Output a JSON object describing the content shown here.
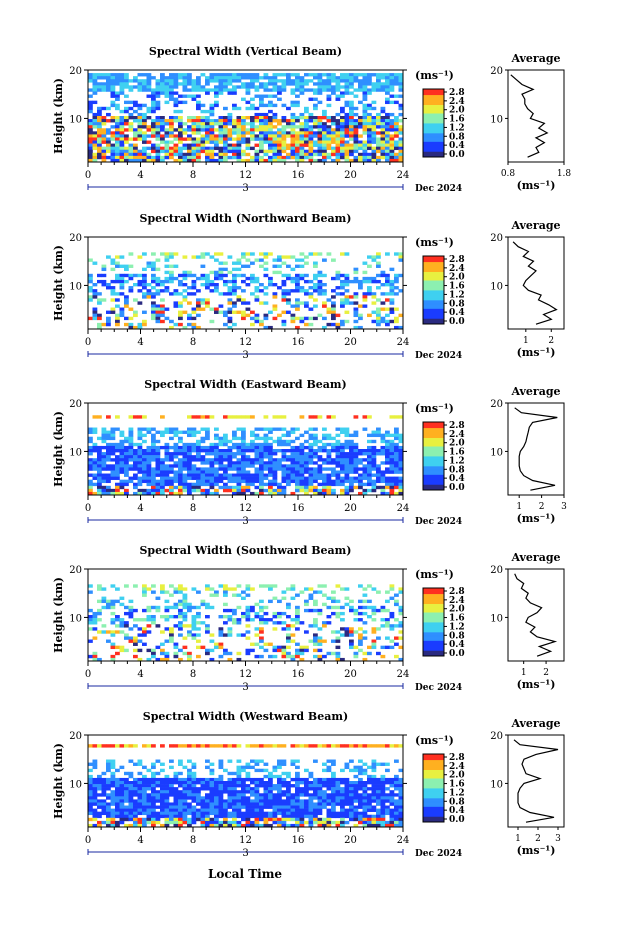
{
  "figure": {
    "xlabel_bottom": "Local Time",
    "date_label": "Dec 2024",
    "day_label": "3",
    "ylabel": "Height (km)",
    "colorbar_unit": "(ms⁻¹)",
    "colorbar_ticks": [
      "2.8",
      "2.4",
      "2.0",
      "1.6",
      "1.2",
      "0.8",
      "0.4",
      "0.0"
    ],
    "avg_title": "Average",
    "avg_xlabel": "(ms⁻¹)",
    "colors": {
      "scale": [
        "#2a2a80",
        "#1a3cff",
        "#2f8fff",
        "#3fd0f0",
        "#8cf0b0",
        "#e8f040",
        "#ffb020",
        "#ff3020"
      ]
    }
  },
  "chart_data": [
    {
      "type": "heatmap",
      "title": "Spectral Width (Vertical Beam)",
      "xlabel": "Local Time",
      "ylabel": "Height (km)",
      "x_ticks": [
        0,
        4,
        8,
        12,
        16,
        20,
        24
      ],
      "y_ticks": [
        10,
        20
      ],
      "xlim": [
        0,
        24
      ],
      "ylim": [
        1,
        20
      ],
      "value_range": [
        0.0,
        3.0
      ],
      "average_profile": {
        "xlim": [
          0.8,
          1.8
        ],
        "x_ticks": [
          "0.8",
          "1.8"
        ],
        "heights": [
          2,
          3,
          4,
          5,
          6,
          7,
          8,
          9,
          10,
          11,
          12,
          13,
          14,
          15,
          16,
          17,
          18,
          19
        ],
        "values": [
          1.15,
          1.35,
          1.3,
          1.45,
          1.3,
          1.5,
          1.35,
          1.45,
          1.2,
          1.25,
          1.15,
          1.1,
          1.1,
          1.05,
          1.25,
          1.05,
          0.95,
          0.85
        ]
      }
    },
    {
      "type": "heatmap",
      "title": "Spectral Width (Northward Beam)",
      "xlabel": "Local Time",
      "ylabel": "Height (km)",
      "x_ticks": [
        0,
        4,
        8,
        12,
        16,
        20,
        24
      ],
      "y_ticks": [
        10,
        20
      ],
      "xlim": [
        0,
        24
      ],
      "ylim": [
        1,
        20
      ],
      "value_range": [
        0.0,
        3.0
      ],
      "average_profile": {
        "xlim": [
          0.3,
          2.5
        ],
        "x_ticks": [
          "1",
          "2"
        ],
        "heights": [
          2,
          3,
          4,
          5,
          6,
          7,
          8,
          9,
          10,
          11,
          12,
          13,
          14,
          15,
          16,
          17,
          18,
          19
        ],
        "values": [
          1.4,
          2.0,
          1.7,
          2.2,
          1.9,
          1.5,
          1.6,
          1.1,
          0.9,
          1.0,
          1.2,
          1.4,
          1.1,
          1.3,
          0.9,
          1.1,
          0.7,
          0.5
        ]
      }
    },
    {
      "type": "heatmap",
      "title": "Spectral Width (Eastward Beam)",
      "xlabel": "Local Time",
      "ylabel": "Height (km)",
      "x_ticks": [
        0,
        4,
        8,
        12,
        16,
        20,
        24
      ],
      "y_ticks": [
        10,
        20
      ],
      "xlim": [
        0,
        24
      ],
      "ylim": [
        1,
        20
      ],
      "value_range": [
        0.0,
        3.0
      ],
      "average_profile": {
        "xlim": [
          0.5,
          3.0
        ],
        "x_ticks": [
          "1",
          "2",
          "3"
        ],
        "heights": [
          2,
          3,
          4,
          5,
          6,
          7,
          8,
          9,
          10,
          11,
          12,
          13,
          14,
          15,
          16,
          17,
          18,
          19
        ],
        "values": [
          1.5,
          2.6,
          1.6,
          1.2,
          1.05,
          1.0,
          1.0,
          1.0,
          1.05,
          1.2,
          1.3,
          1.35,
          1.4,
          1.45,
          1.6,
          2.7,
          1.1,
          0.8
        ]
      }
    },
    {
      "type": "heatmap",
      "title": "Spectral Width (Southward Beam)",
      "xlabel": "Local Time",
      "ylabel": "Height (km)",
      "x_ticks": [
        0,
        4,
        8,
        12,
        16,
        20,
        24
      ],
      "y_ticks": [
        10,
        20
      ],
      "xlim": [
        0,
        24
      ],
      "ylim": [
        1,
        20
      ],
      "value_range": [
        0.0,
        3.0
      ],
      "average_profile": {
        "xlim": [
          0.3,
          2.8
        ],
        "x_ticks": [
          "1",
          "2"
        ],
        "heights": [
          2,
          3,
          4,
          5,
          6,
          7,
          8,
          9,
          10,
          11,
          12,
          13,
          14,
          15,
          16,
          17,
          18,
          19
        ],
        "values": [
          1.6,
          2.2,
          1.7,
          2.4,
          1.6,
          1.3,
          1.5,
          1.1,
          1.2,
          1.6,
          1.8,
          1.3,
          1.1,
          1.2,
          0.9,
          1.0,
          0.7,
          0.6
        ]
      }
    },
    {
      "type": "heatmap",
      "title": "Spectral Width (Westward Beam)",
      "xlabel": "Local Time",
      "ylabel": "Height (km)",
      "x_ticks": [
        0,
        4,
        8,
        12,
        16,
        20,
        24
      ],
      "y_ticks": [
        10,
        20
      ],
      "xlim": [
        0,
        24
      ],
      "ylim": [
        1,
        20
      ],
      "value_range": [
        0.0,
        3.0
      ],
      "average_profile": {
        "xlim": [
          0.5,
          3.3
        ],
        "x_ticks": [
          "1",
          "2",
          "3"
        ],
        "heights": [
          2,
          3,
          4,
          5,
          6,
          7,
          8,
          9,
          10,
          11,
          12,
          13,
          14,
          15,
          16,
          17,
          18,
          19
        ],
        "values": [
          1.4,
          2.8,
          1.6,
          1.1,
          1.0,
          1.0,
          1.0,
          1.1,
          1.3,
          2.1,
          1.4,
          1.3,
          1.2,
          1.3,
          1.9,
          3.0,
          1.1,
          0.8
        ]
      }
    }
  ]
}
